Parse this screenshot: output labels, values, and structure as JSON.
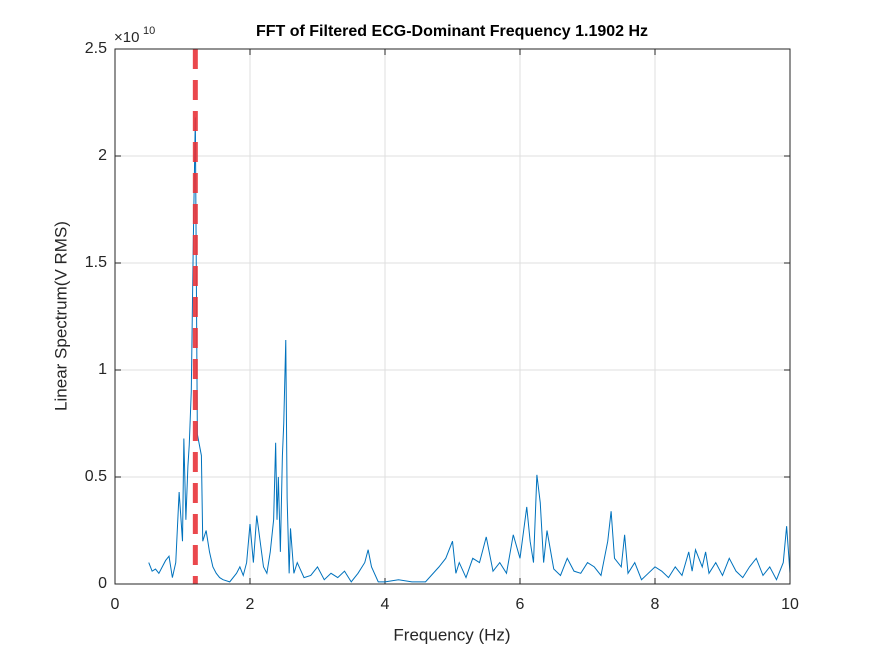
{
  "chart_data": {
    "type": "line",
    "title": "FFT of Filtered ECG-Dominant Frequency 1.1902 Hz",
    "x_label": "Frequency (Hz)",
    "y_label": "Linear Spectrum(V RMS)",
    "y_exponent": {
      "base": "×10",
      "power": "10"
    },
    "xlim": [
      0,
      10
    ],
    "xticks": [
      0,
      2,
      4,
      6,
      8,
      10
    ],
    "ylim": [
      0,
      2.5
    ],
    "yticks": [
      0,
      0.5,
      1,
      1.5,
      2,
      2.5
    ],
    "grid": true,
    "vline": {
      "x": 1.1902,
      "color": "#e8353a"
    },
    "series": [
      {
        "color": "#0072bd",
        "x": [
          0.5,
          0.55,
          0.6,
          0.65,
          0.7,
          0.75,
          0.8,
          0.85,
          0.9,
          0.95,
          1.0,
          1.02,
          1.05,
          1.08,
          1.1,
          1.13,
          1.16,
          1.19,
          1.22,
          1.25,
          1.28,
          1.3,
          1.35,
          1.4,
          1.45,
          1.5,
          1.55,
          1.6,
          1.7,
          1.8,
          1.85,
          1.9,
          1.95,
          2.0,
          2.05,
          2.1,
          2.15,
          2.2,
          2.25,
          2.3,
          2.35,
          2.38,
          2.4,
          2.42,
          2.45,
          2.48,
          2.5,
          2.53,
          2.55,
          2.58,
          2.6,
          2.65,
          2.7,
          2.8,
          2.9,
          3.0,
          3.1,
          3.2,
          3.3,
          3.4,
          3.5,
          3.6,
          3.7,
          3.75,
          3.8,
          3.9,
          4.0,
          4.2,
          4.4,
          4.6,
          4.8,
          4.9,
          5.0,
          5.05,
          5.1,
          5.2,
          5.3,
          5.4,
          5.5,
          5.6,
          5.7,
          5.8,
          5.9,
          6.0,
          6.1,
          6.15,
          6.2,
          6.25,
          6.3,
          6.35,
          6.4,
          6.5,
          6.6,
          6.7,
          6.8,
          6.9,
          7.0,
          7.1,
          7.2,
          7.3,
          7.35,
          7.4,
          7.5,
          7.55,
          7.6,
          7.7,
          7.8,
          7.9,
          8.0,
          8.1,
          8.2,
          8.3,
          8.4,
          8.5,
          8.55,
          8.6,
          8.7,
          8.75,
          8.8,
          8.9,
          9.0,
          9.1,
          9.2,
          9.3,
          9.4,
          9.5,
          9.6,
          9.7,
          9.8,
          9.9,
          9.95,
          10.0
        ],
        "values": [
          0.1,
          0.06,
          0.07,
          0.05,
          0.08,
          0.11,
          0.13,
          0.03,
          0.1,
          0.43,
          0.2,
          0.68,
          0.3,
          0.55,
          0.65,
          0.9,
          1.6,
          2.18,
          0.7,
          0.65,
          0.6,
          0.2,
          0.25,
          0.15,
          0.08,
          0.05,
          0.03,
          0.02,
          0.01,
          0.05,
          0.08,
          0.04,
          0.1,
          0.28,
          0.1,
          0.32,
          0.2,
          0.08,
          0.05,
          0.15,
          0.3,
          0.66,
          0.3,
          0.5,
          0.15,
          0.6,
          0.75,
          1.14,
          0.4,
          0.05,
          0.26,
          0.05,
          0.1,
          0.03,
          0.04,
          0.08,
          0.02,
          0.05,
          0.03,
          0.06,
          0.01,
          0.05,
          0.1,
          0.16,
          0.08,
          0.01,
          0.01,
          0.02,
          0.01,
          0.01,
          0.08,
          0.12,
          0.2,
          0.05,
          0.1,
          0.03,
          0.12,
          0.1,
          0.22,
          0.06,
          0.1,
          0.05,
          0.23,
          0.12,
          0.36,
          0.2,
          0.1,
          0.51,
          0.38,
          0.1,
          0.25,
          0.07,
          0.04,
          0.12,
          0.06,
          0.05,
          0.1,
          0.08,
          0.04,
          0.2,
          0.34,
          0.12,
          0.08,
          0.23,
          0.05,
          0.1,
          0.02,
          0.05,
          0.08,
          0.06,
          0.03,
          0.08,
          0.04,
          0.15,
          0.06,
          0.16,
          0.08,
          0.15,
          0.05,
          0.1,
          0.04,
          0.12,
          0.06,
          0.03,
          0.08,
          0.12,
          0.04,
          0.08,
          0.02,
          0.1,
          0.27,
          0.05
        ]
      }
    ]
  }
}
